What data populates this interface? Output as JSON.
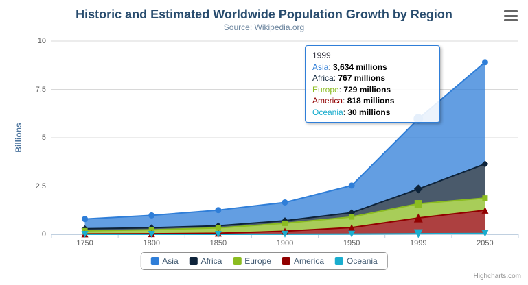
{
  "chart_data": {
    "type": "area",
    "stacking": "normal",
    "title": "Historic and Estimated Worldwide Population Growth by Region",
    "subtitle": "Source: Wikipedia.org",
    "xlabel": "",
    "ylabel": "Billions",
    "ylim": [
      0,
      10
    ],
    "yticks": [
      "0",
      "2.5",
      "5",
      "7.5",
      "10"
    ],
    "values_unit": "millions",
    "grid": true,
    "legend_position": "bottom",
    "categories": [
      "1750",
      "1800",
      "1850",
      "1900",
      "1950",
      "1999",
      "2050"
    ],
    "series": [
      {
        "name": "Asia",
        "color": "#2f7ed8",
        "marker": "circle",
        "values": [
          502,
          635,
          809,
          947,
          1402,
          3634,
          5268
        ]
      },
      {
        "name": "Africa",
        "color": "#0d233a",
        "marker": "diamond",
        "values": [
          106,
          107,
          111,
          133,
          221,
          767,
          1766
        ]
      },
      {
        "name": "Europe",
        "color": "#8bbc21",
        "marker": "square",
        "values": [
          163,
          203,
          276,
          408,
          547,
          729,
          628
        ]
      },
      {
        "name": "America",
        "color": "#910000",
        "marker": "triangle",
        "values": [
          18,
          31,
          54,
          156,
          339,
          818,
          1201
        ]
      },
      {
        "name": "Oceania",
        "color": "#1aadce",
        "marker": "triangle-down",
        "values": [
          2,
          2,
          2,
          6,
          13,
          30,
          46
        ]
      }
    ]
  },
  "tooltip": {
    "header": "1999",
    "separator": ": ",
    "rows": [
      {
        "name": "Asia",
        "value": "3,634 millions"
      },
      {
        "name": "Africa",
        "value": "767 millions"
      },
      {
        "name": "Europe",
        "value": "729 millions"
      },
      {
        "name": "America",
        "value": "818 millions"
      },
      {
        "name": "Oceania",
        "value": "30 millions"
      }
    ]
  },
  "legend": {
    "items": [
      "Asia",
      "Africa",
      "Europe",
      "America",
      "Oceania"
    ]
  },
  "credits": "Highcharts.com",
  "icons": {
    "context_menu": "hamburger-menu"
  }
}
